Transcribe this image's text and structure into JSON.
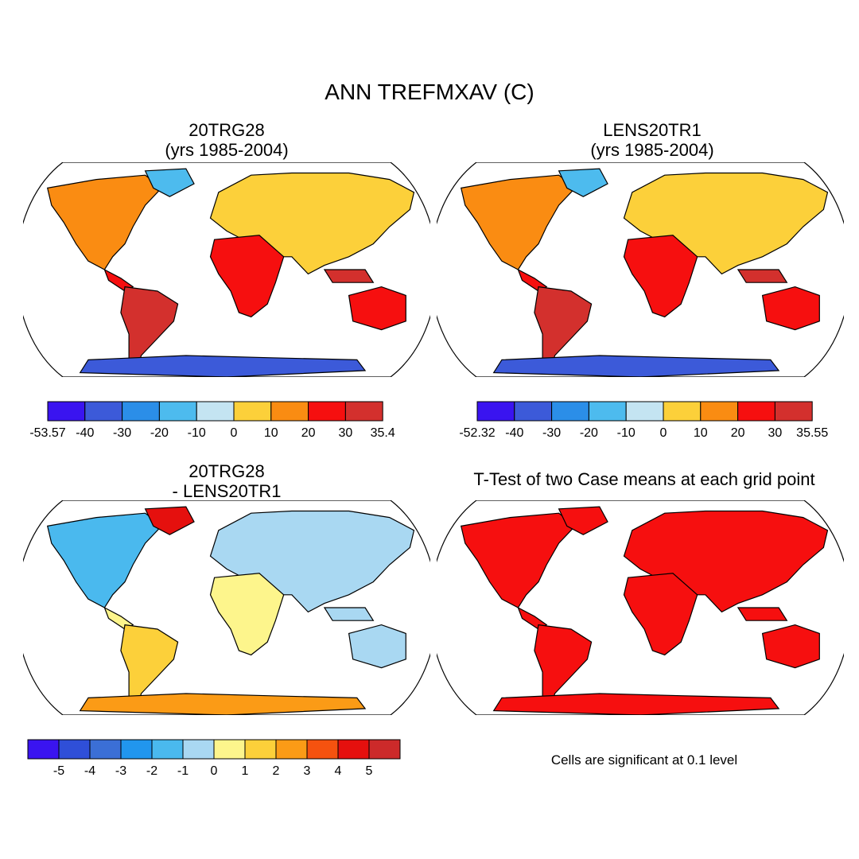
{
  "main_title": "ANN TREFMXAV (C)",
  "panels": [
    {
      "title": "20TRG28\n(yrs 1985-2004)",
      "colors": [
        "#3a14f0",
        "#3c5ad9",
        "#2b8ee8",
        "#4dbbee",
        "#c4e4f2",
        "#fcd03a",
        "#fa8c12",
        "#f60f0f",
        "#d3302d"
      ],
      "ticks": [
        "-53.57",
        "-40",
        "-30",
        "-20",
        "-10",
        "0",
        "10",
        "20",
        "30",
        "35.4"
      ]
    },
    {
      "title": "LENS20TR1\n(yrs 1985-2004)",
      "colors": [
        "#3a14f0",
        "#3c5ad9",
        "#2b8ee8",
        "#4dbbee",
        "#c4e4f2",
        "#fcd03a",
        "#fa8c12",
        "#f60f0f",
        "#d3302d"
      ],
      "ticks": [
        "-52.32",
        "-40",
        "-30",
        "-20",
        "-10",
        "0",
        "10",
        "20",
        "30",
        "35.55"
      ]
    },
    {
      "title": "20TRG28\n- LENS20TR1",
      "colors": [
        "#3a14f0",
        "#2f4fd8",
        "#3b6fd6",
        "#2196ee",
        "#4ab9ee",
        "#a9d8f2",
        "#fdf58c",
        "#fcd03a",
        "#fb9b16",
        "#f5520f",
        "#e5100e",
        "#cc2a2a"
      ],
      "ticks": [
        "-5",
        "-4",
        "-3",
        "-2",
        "-1",
        "0",
        "1",
        "2",
        "3",
        "4",
        "5"
      ]
    },
    {
      "title": "T-Test of two Case means at each grid point",
      "note": "Cells are significant at 0.1 level"
    }
  ]
}
